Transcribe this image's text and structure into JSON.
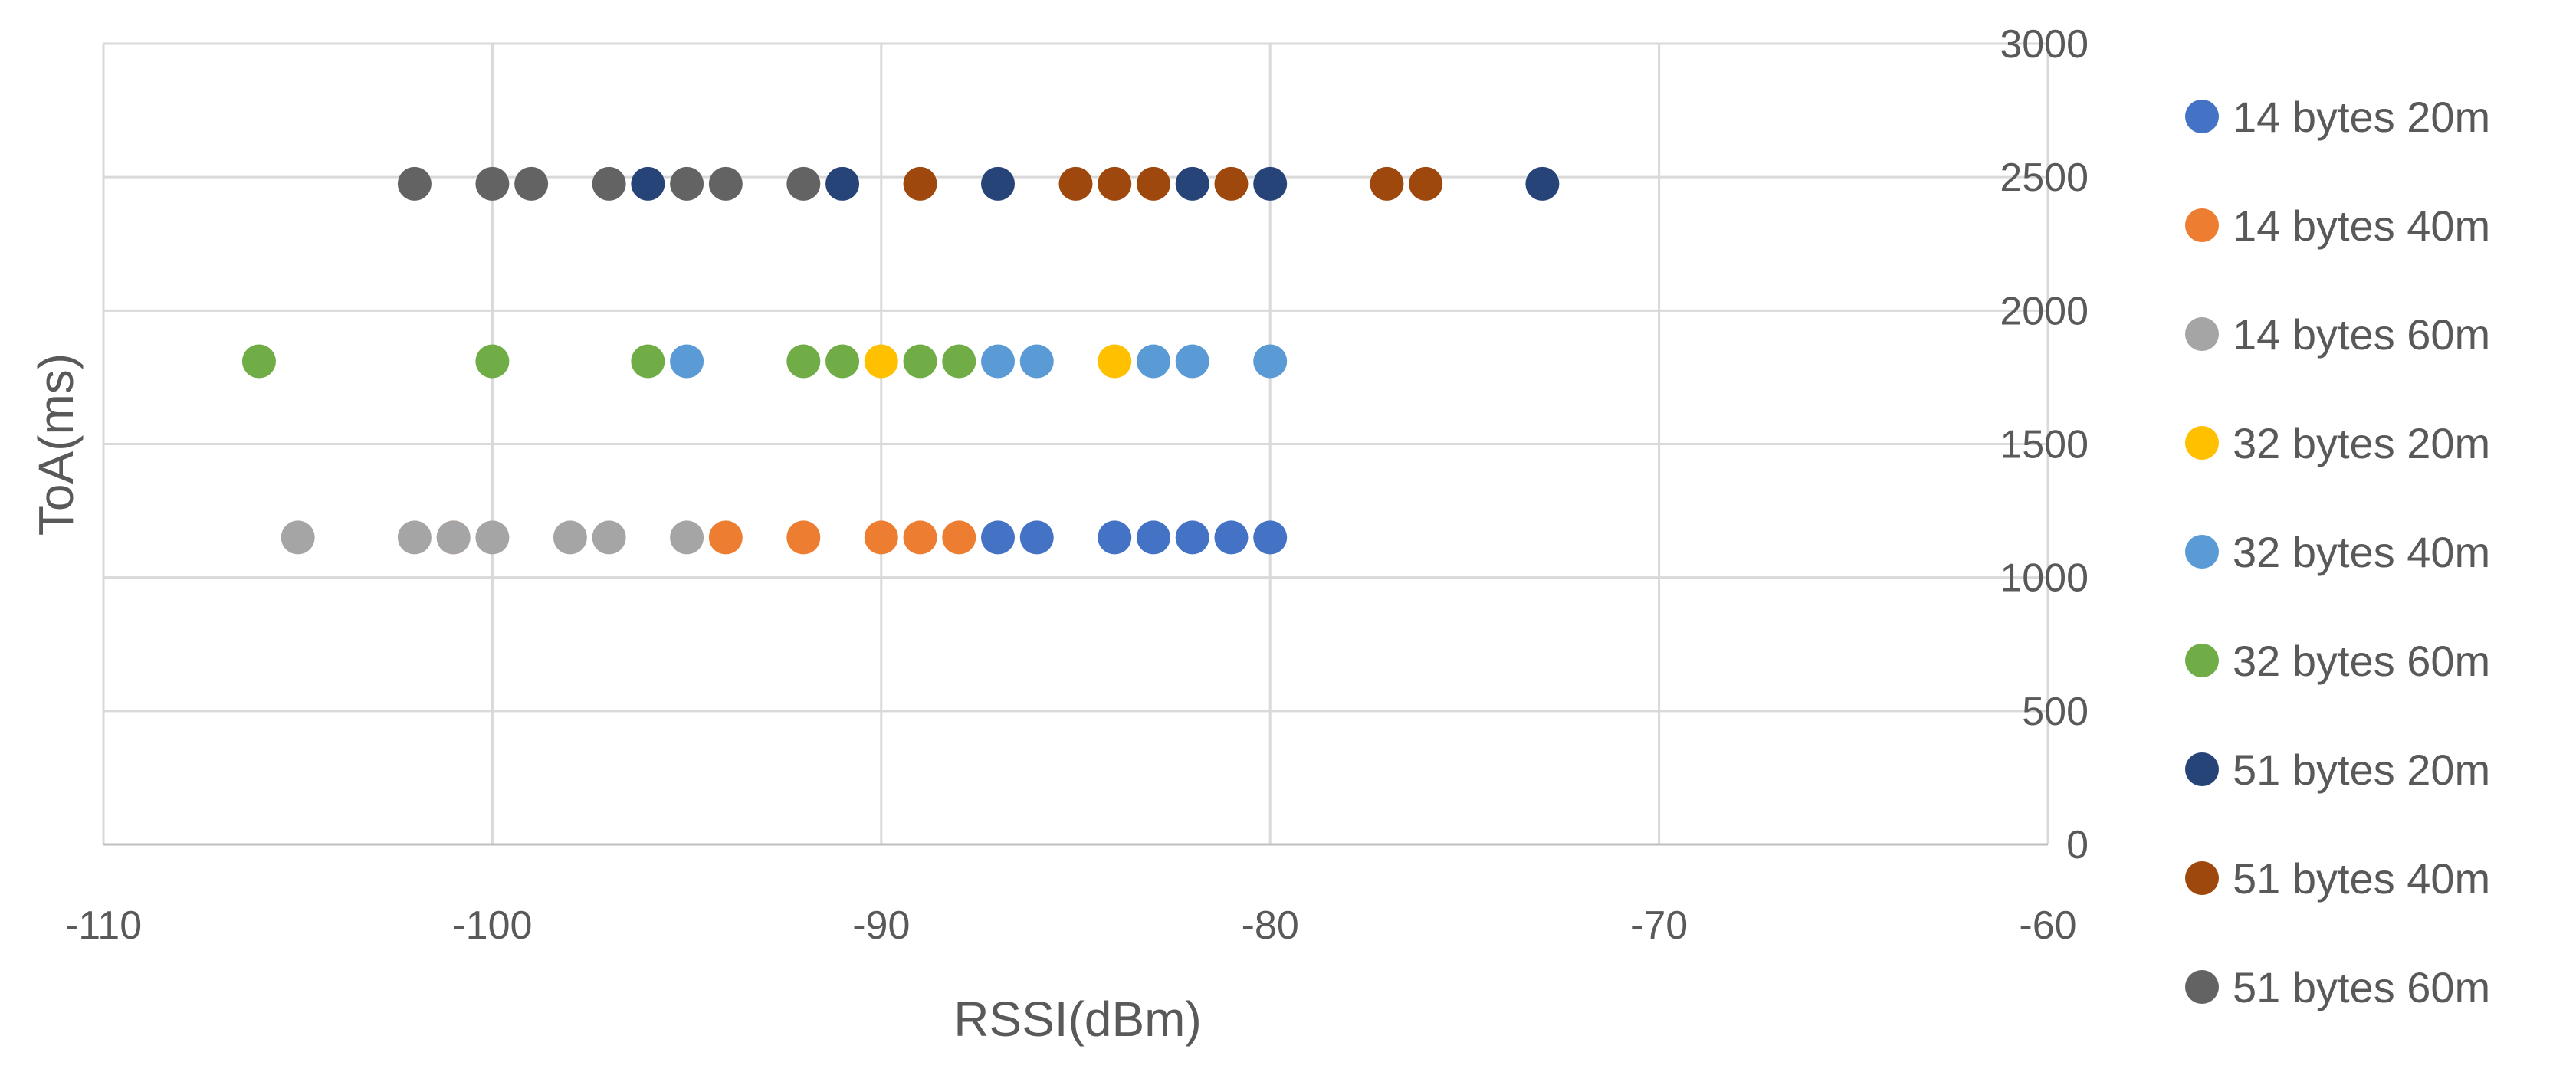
{
  "chart_data": {
    "type": "scatter",
    "title": "",
    "xlabel": "RSSI(dBm)",
    "ylabel": "ToA(ms)",
    "xlim": [
      -110,
      -60
    ],
    "ylim": [
      0,
      3000
    ],
    "x_ticks": [
      -110,
      -100,
      -90,
      -80,
      -70,
      -60
    ],
    "y_ticks": [
      0,
      500,
      1000,
      1500,
      2000,
      2500,
      3000
    ],
    "y_axis_side": "right",
    "grid": true,
    "legend_position": "right",
    "series": [
      {
        "name": "14 bytes 20m",
        "color": "#4472C4",
        "y": 1150,
        "x": [
          -87,
          -86,
          -84,
          -83,
          -82,
          -81,
          -80
        ]
      },
      {
        "name": "14 bytes 40m",
        "color": "#ED7D31",
        "y": 1150,
        "x": [
          -101,
          -94,
          -92,
          -90,
          -89,
          -88
        ]
      },
      {
        "name": "14 bytes 60m",
        "color": "#A5A5A5",
        "y": 1150,
        "x": [
          -105,
          -102,
          -101,
          -100,
          -98,
          -97,
          -95
        ]
      },
      {
        "name": "32 bytes 20m",
        "color": "#FFC000",
        "y": 1810,
        "x": [
          -90,
          -84
        ]
      },
      {
        "name": "32 bytes 40m",
        "color": "#5B9BD5",
        "y": 1810,
        "x": [
          -95,
          -87,
          -86,
          -83,
          -82,
          -80
        ]
      },
      {
        "name": "32 bytes 60m",
        "color": "#70AD47",
        "y": 1810,
        "x": [
          -106,
          -100,
          -96,
          -92,
          -91,
          -89,
          -88
        ]
      },
      {
        "name": "51 bytes 20m",
        "color": "#264478",
        "y": 2475,
        "x": [
          -96,
          -91,
          -87,
          -82,
          -80,
          -73
        ]
      },
      {
        "name": "51 bytes 40m",
        "color": "#9E480E",
        "y": 2475,
        "x": [
          -89,
          -85,
          -84,
          -83,
          -81,
          -77,
          -76
        ]
      },
      {
        "name": "51 bytes 60m",
        "color": "#636363",
        "y": 2475,
        "x": [
          -102,
          -100,
          -99,
          -97,
          -95,
          -94,
          -92
        ]
      }
    ]
  }
}
